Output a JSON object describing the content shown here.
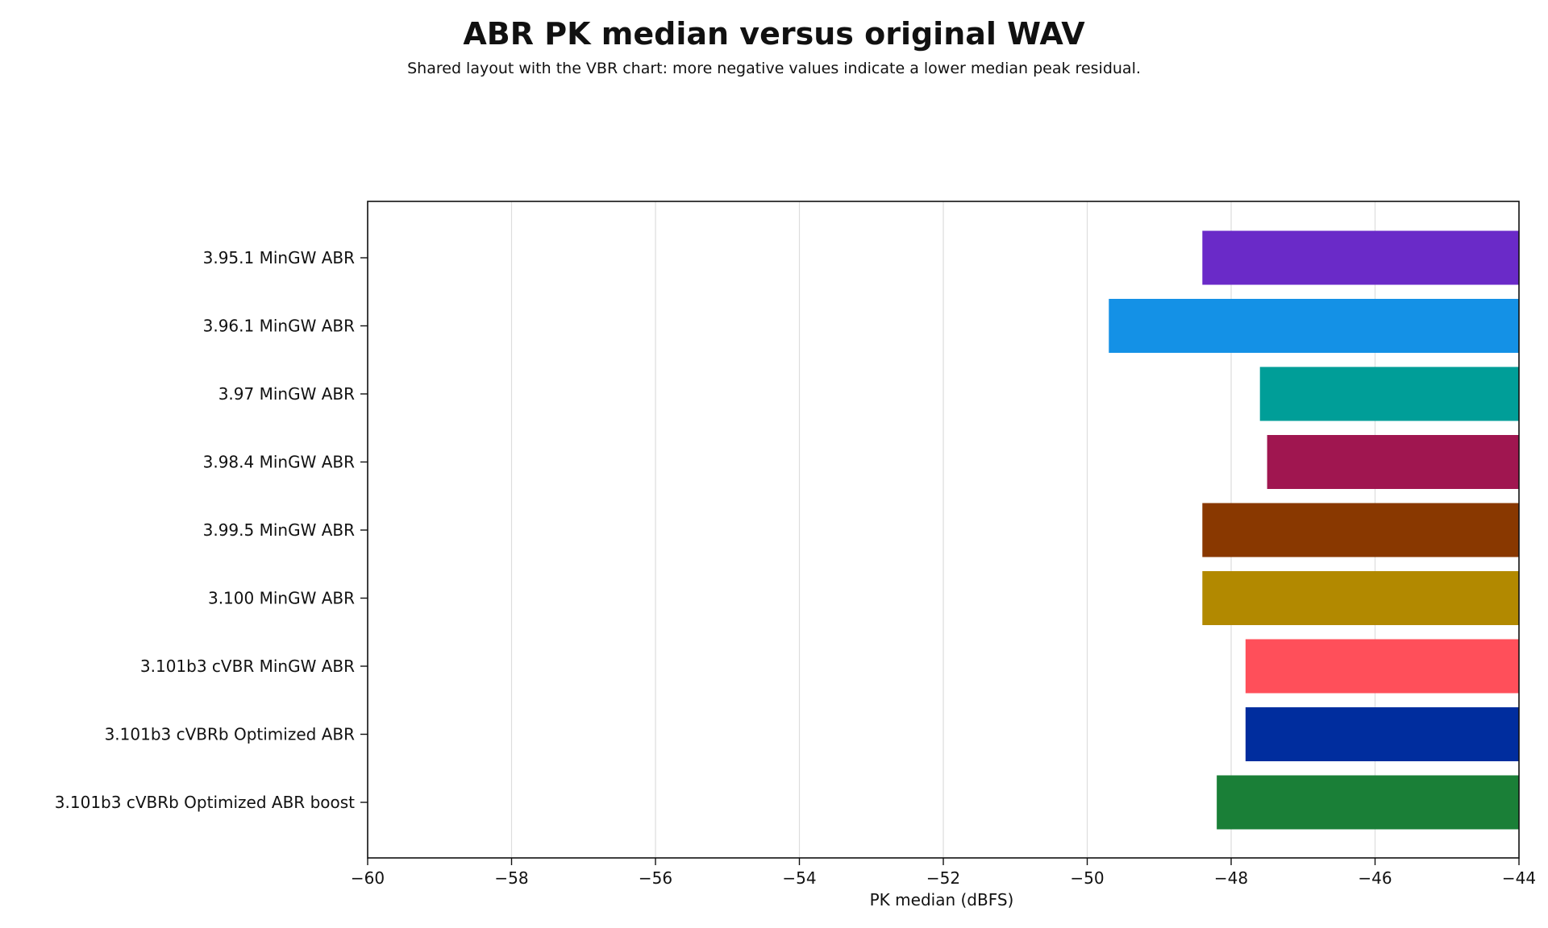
{
  "chart_data": {
    "type": "bar",
    "orientation": "horizontal",
    "title": "ABR PK median versus original WAV",
    "subtitle": "Shared layout with the VBR chart: more negative values indicate a lower median peak residual.",
    "xlabel": "PK median (dBFS)",
    "ylabel": "",
    "xlim": [
      -60,
      -44
    ],
    "xticks": [
      -60,
      -58,
      -56,
      -54,
      -52,
      -50,
      -48,
      -46,
      -44
    ],
    "grid": "vertical",
    "categories": [
      "3.95.1 MinGW ABR",
      "3.96.1 MinGW ABR",
      "3.97 MinGW ABR",
      "3.98.4 MinGW ABR",
      "3.99.5 MinGW ABR",
      "3.100 MinGW ABR",
      "3.101b3 cVBR MinGW ABR",
      "3.101b3 cVBRb Optimized ABR",
      "3.101b3 cVBRb Optimized ABR boost"
    ],
    "values": [
      -48.4,
      -49.7,
      -47.6,
      -47.5,
      -48.4,
      -48.4,
      -47.8,
      -47.8,
      -48.2
    ],
    "colors": [
      "#6a2ac8",
      "#1491e6",
      "#009e98",
      "#a01650",
      "#893800",
      "#b28900",
      "#ff4f5a",
      "#002d9e",
      "#1a7f37"
    ]
  }
}
